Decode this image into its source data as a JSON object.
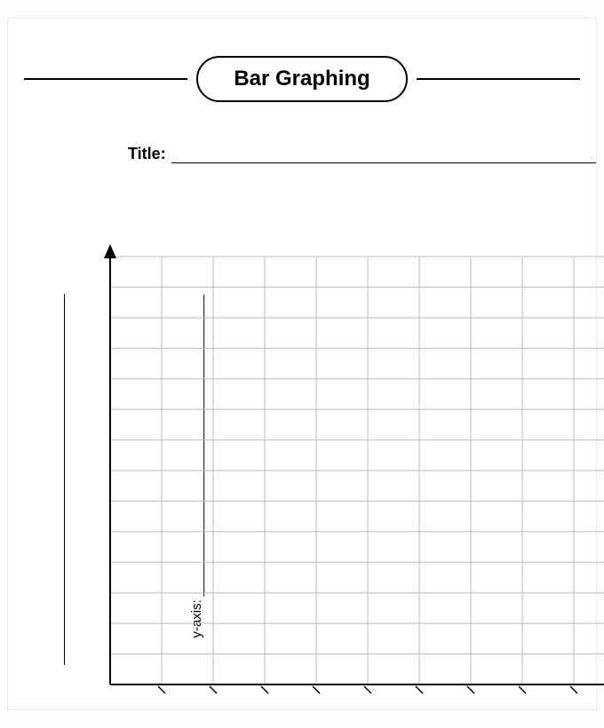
{
  "header": {
    "title": "Bar Graphing"
  },
  "title_field": {
    "label": "Title:",
    "value": ""
  },
  "y_axis": {
    "label": "y-axis:",
    "value": ""
  },
  "chart": {
    "type": "bar-template",
    "cols": 10,
    "rows": 14,
    "grid_color": "#bdbdbd",
    "axis_color": "#000000",
    "axis_width": 2,
    "grid_width": 1,
    "background_color": "#ffffff",
    "tick_length": 8
  }
}
